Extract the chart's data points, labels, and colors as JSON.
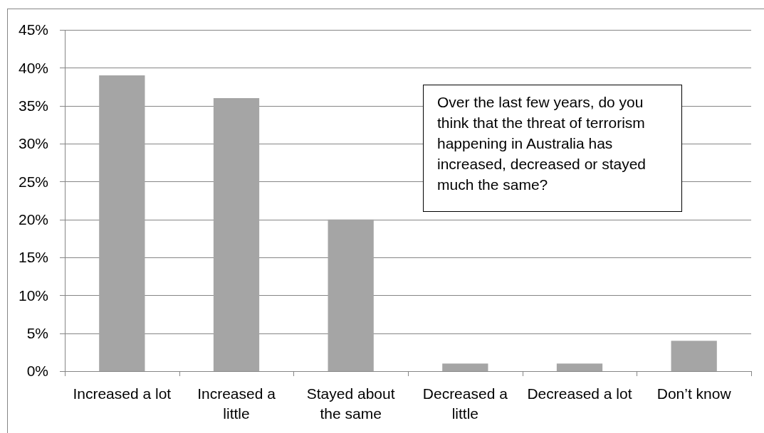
{
  "chart_data": {
    "type": "bar",
    "categories": [
      "Increased a lot",
      "Increased a little",
      "Stayed about the same",
      "Decreased a little",
      "Decreased a lot",
      "Don’t know"
    ],
    "values": [
      39,
      36,
      20,
      1,
      1,
      4
    ],
    "color": "#a5a5a5",
    "ylim": [
      0,
      45
    ],
    "yticks": [
      {
        "value": 0,
        "label": "0%"
      },
      {
        "value": 5,
        "label": "5%"
      },
      {
        "value": 10,
        "label": "10%"
      },
      {
        "value": 15,
        "label": "15%"
      },
      {
        "value": 20,
        "label": "20%"
      },
      {
        "value": 25,
        "label": "25%"
      },
      {
        "value": 30,
        "label": "30%"
      },
      {
        "value": 35,
        "label": "35%"
      },
      {
        "value": 40,
        "label": "40%"
      },
      {
        "value": 45,
        "label": "45%"
      }
    ],
    "grid": "y",
    "annotations": [
      "Over the last few years, do you think that the threat of terrorism happening in Australia has increased, decreased or stayed much the same?"
    ]
  }
}
